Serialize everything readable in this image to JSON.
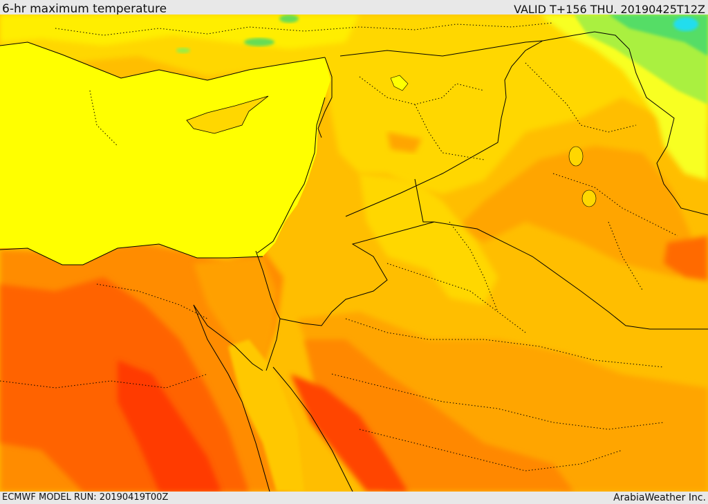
{
  "header": {
    "title": "6-hr maximum temperature",
    "valid": "VALID T+156 THU. 20190425T12Z"
  },
  "footer": {
    "model_run": "ECMWF MODEL RUN: 20190419T00Z",
    "credit": "ArabiaWeather Inc."
  },
  "palette": {
    "sea": "#ffff00",
    "warm_yellow": "#ffd700",
    "gold": "#ffbe00",
    "orange": "#ffa500",
    "dark_orange": "#ff7f00",
    "red_orange": "#ff5500",
    "red": "#ff3300",
    "light_green": "#b8f040",
    "green": "#55dd66",
    "cyan": "#22ddee",
    "border": "#000000"
  }
}
